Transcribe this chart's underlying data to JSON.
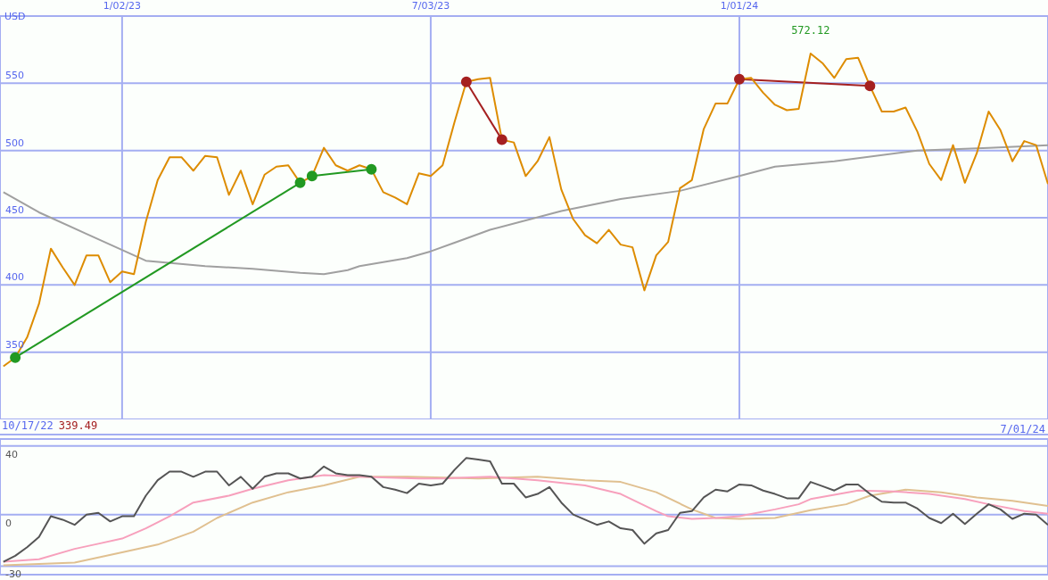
{
  "chart_data": [
    {
      "type": "line",
      "ylabel": "USD",
      "xlim": [
        "2022-10-22",
        "2024-07-01"
      ],
      "xticks": [
        {
          "value": "2023-01-02",
          "label": "1/02/23"
        },
        {
          "value": "2023-07-03",
          "label": "7/03/23"
        },
        {
          "value": "2024-01-01",
          "label": "1/01/24"
        }
      ],
      "ylim": [
        300,
        600
      ],
      "yticks": [
        350,
        400,
        450,
        500,
        550
      ],
      "grid": true,
      "tick_labels": "xy",
      "x": [
        "2022-10-24",
        "2022-10-31",
        "2022-11-07",
        "2022-11-14",
        "2022-11-21",
        "2022-11-28",
        "2022-12-05",
        "2022-12-12",
        "2022-12-19",
        "2022-12-26",
        "2023-01-02",
        "2023-01-09",
        "2023-01-16",
        "2023-01-23",
        "2023-01-30",
        "2023-02-06",
        "2023-02-13",
        "2023-02-20",
        "2023-02-27",
        "2023-03-06",
        "2023-03-13",
        "2023-03-20",
        "2023-03-27",
        "2023-04-03",
        "2023-04-10",
        "2023-04-17",
        "2023-04-24",
        "2023-05-01",
        "2023-05-08",
        "2023-05-15",
        "2023-05-22",
        "2023-05-29",
        "2023-06-05",
        "2023-06-12",
        "2023-06-19",
        "2023-06-26",
        "2023-07-03",
        "2023-07-10",
        "2023-07-17",
        "2023-07-24",
        "2023-07-31",
        "2023-08-07",
        "2023-08-14",
        "2023-08-21",
        "2023-08-28",
        "2023-09-04",
        "2023-09-11",
        "2023-09-18",
        "2023-09-25",
        "2023-10-02",
        "2023-10-09",
        "2023-10-16",
        "2023-10-23",
        "2023-10-30",
        "2023-11-06",
        "2023-11-13",
        "2023-11-20",
        "2023-11-27",
        "2023-12-04",
        "2023-12-11",
        "2023-12-18",
        "2023-12-25",
        "2024-01-01",
        "2024-01-08",
        "2024-01-15",
        "2024-01-22",
        "2024-01-29",
        "2024-02-05",
        "2024-02-12",
        "2024-02-19",
        "2024-02-26",
        "2024-03-04",
        "2024-03-11",
        "2024-03-18",
        "2024-03-25",
        "2024-04-01",
        "2024-04-08",
        "2024-04-15",
        "2024-04-22",
        "2024-04-29",
        "2024-05-06",
        "2024-05-13",
        "2024-05-20",
        "2024-05-27",
        "2024-06-03",
        "2024-06-10",
        "2024-06-17",
        "2024-06-24",
        "2024-07-01"
      ],
      "series": [
        {
          "color": "#a0a0a0",
          "x": [
            "2022-10-24",
            "2022-11-14",
            "2022-12-12",
            "2023-01-16",
            "2023-02-20",
            "2023-03-20",
            "2023-04-17",
            "2023-05-01",
            "2023-05-15",
            "2023-05-22",
            "2023-06-19",
            "2023-07-03",
            "2023-08-07",
            "2023-09-18",
            "2023-10-23",
            "2023-11-27",
            "2024-01-01",
            "2024-01-22",
            "2024-02-26",
            "2024-04-15",
            "2024-05-27",
            "2024-07-01"
          ],
          "values": [
            469,
            454,
            438,
            418,
            414,
            412,
            409,
            408,
            411,
            414,
            420,
            425,
            441,
            455,
            464,
            470,
            481,
            488,
            492,
            500,
            502,
            504
          ]
        },
        {
          "color": "#229922",
          "marker": "circle",
          "x": [
            "2022-10-31",
            "2023-04-17"
          ],
          "values": [
            346,
            476
          ]
        },
        {
          "color": "#229922",
          "marker": "circle",
          "x": [
            "2023-04-24",
            "2023-05-29"
          ],
          "values": [
            481,
            486
          ]
        },
        {
          "color": "#a52020",
          "marker": "circle",
          "x": [
            "2023-07-24",
            "2023-08-14"
          ],
          "values": [
            551,
            508
          ]
        },
        {
          "color": "#a52020",
          "marker": "circle",
          "x": [
            "2024-01-01",
            "2024-03-18"
          ],
          "values": [
            553,
            548
          ]
        },
        {
          "color": "#dd8c00",
          "values": [
            339.49,
            346,
            361,
            386,
            427,
            413,
            400,
            422,
            422,
            402,
            410,
            408,
            447,
            478,
            495,
            495,
            485,
            496,
            495,
            467,
            485,
            460,
            482,
            488,
            489,
            476,
            481,
            502,
            489,
            485,
            489,
            486,
            469,
            465,
            460,
            483,
            481,
            489,
            521,
            551,
            553,
            554,
            508,
            506,
            481,
            492,
            510,
            471,
            449,
            437,
            431,
            441,
            430,
            428,
            396,
            422,
            432,
            472,
            478,
            516,
            535,
            535,
            553,
            554,
            543,
            534,
            530,
            531,
            572.12,
            565,
            554,
            568,
            569,
            548,
            529,
            529,
            532,
            514,
            490,
            478,
            504,
            476,
            498,
            529,
            515,
            492,
            507,
            504,
            475
          ]
        }
      ],
      "annotations": [
        "10/17/22",
        "339.49",
        "7/01/24",
        {
          "text": "572.12",
          "x": "2024-02-12",
          "y": 572.12
        }
      ]
    },
    {
      "type": "line",
      "xlim": [
        "2022-10-22",
        "2024-07-01"
      ],
      "xticks": [
        {
          "value": "2023-01-02",
          "label": null
        },
        {
          "value": "2023-07-03",
          "label": null
        },
        {
          "value": "2024-01-01",
          "label": null
        }
      ],
      "ylim": [
        -35,
        44
      ],
      "yticks": [
        -30,
        0,
        40
      ],
      "grid": true,
      "tick_labels": "y",
      "x": [
        "2022-10-24",
        "2022-10-31",
        "2022-11-07",
        "2022-11-14",
        "2022-11-21",
        "2022-11-28",
        "2022-12-05",
        "2022-12-12",
        "2022-12-19",
        "2022-12-26",
        "2023-01-02",
        "2023-01-09",
        "2023-01-16",
        "2023-01-23",
        "2023-01-30",
        "2023-02-06",
        "2023-02-13",
        "2023-02-20",
        "2023-02-27",
        "2023-03-06",
        "2023-03-13",
        "2023-03-20",
        "2023-03-27",
        "2023-04-03",
        "2023-04-10",
        "2023-04-17",
        "2023-04-24",
        "2023-05-01",
        "2023-05-08",
        "2023-05-15",
        "2023-05-22",
        "2023-05-29",
        "2023-06-05",
        "2023-06-12",
        "2023-06-19",
        "2023-06-26",
        "2023-07-03",
        "2023-07-10",
        "2023-07-17",
        "2023-07-24",
        "2023-07-31",
        "2023-08-07",
        "2023-08-14",
        "2023-08-21",
        "2023-08-28",
        "2023-09-04",
        "2023-09-11",
        "2023-09-18",
        "2023-09-25",
        "2023-10-02",
        "2023-10-09",
        "2023-10-16",
        "2023-10-23",
        "2023-10-30",
        "2023-11-06",
        "2023-11-13",
        "2023-11-20",
        "2023-11-27",
        "2023-12-04",
        "2023-12-11",
        "2023-12-18",
        "2023-12-25",
        "2024-01-01",
        "2024-01-08",
        "2024-01-15",
        "2024-01-22",
        "2024-01-29",
        "2024-02-05",
        "2024-02-12",
        "2024-02-19",
        "2024-02-26",
        "2024-03-04",
        "2024-03-11",
        "2024-03-18",
        "2024-03-25",
        "2024-04-01",
        "2024-04-08",
        "2024-04-15",
        "2024-04-22",
        "2024-04-29",
        "2024-05-06",
        "2024-05-13",
        "2024-05-20",
        "2024-05-27",
        "2024-06-03",
        "2024-06-10",
        "2024-06-17",
        "2024-06-24",
        "2024-07-01"
      ],
      "series": [
        {
          "color": "#e0c090",
          "x": [
            "2022-10-24",
            "2022-12-05",
            "2023-01-02",
            "2023-01-23",
            "2023-02-13",
            "2023-02-27",
            "2023-03-20",
            "2023-04-10",
            "2023-05-01",
            "2023-05-22",
            "2023-06-19",
            "2023-07-31",
            "2023-09-04",
            "2023-10-02",
            "2023-10-23",
            "2023-11-13",
            "2023-12-04",
            "2023-12-18",
            "2024-01-01",
            "2024-01-22",
            "2024-02-12",
            "2024-03-04",
            "2024-03-18",
            "2024-04-08",
            "2024-04-29",
            "2024-05-20",
            "2024-06-10",
            "2024-07-01"
          ],
          "values": [
            -29.5,
            -28,
            -22,
            -17.5,
            -10,
            -2,
            7,
            13,
            17,
            22,
            22,
            21,
            22,
            20,
            19,
            13,
            3,
            -2,
            -2.5,
            -2,
            2.5,
            6,
            11,
            14.5,
            13,
            10,
            8,
            5
          ]
        },
        {
          "color": "#f7a0bc",
          "x": [
            "2022-10-24",
            "2022-11-14",
            "2022-12-05",
            "2022-12-19",
            "2023-01-02",
            "2023-01-16",
            "2023-01-30",
            "2023-02-13",
            "2023-03-06",
            "2023-03-20",
            "2023-04-10",
            "2023-05-01",
            "2023-05-22",
            "2023-06-26",
            "2023-07-10",
            "2023-08-07",
            "2023-09-04",
            "2023-10-02",
            "2023-10-23",
            "2023-11-13",
            "2023-11-20",
            "2023-12-04",
            "2023-12-18",
            "2024-01-01",
            "2024-01-22",
            "2024-02-05",
            "2024-02-12",
            "2024-03-11",
            "2024-04-01",
            "2024-04-22",
            "2024-05-13",
            "2024-05-27",
            "2024-06-17",
            "2024-07-01"
          ],
          "values": [
            -27.5,
            -26,
            -20,
            -17,
            -14,
            -8,
            -1,
            7,
            11,
            15,
            20,
            23,
            22,
            21,
            21,
            22,
            20,
            17,
            12,
            2,
            -1,
            -2.5,
            -2,
            -1,
            3,
            6,
            9,
            14,
            13.5,
            12,
            9,
            6,
            2,
            0.5
          ]
        },
        {
          "color": "#555555",
          "values": [
            -27.5,
            -24,
            -19,
            -13,
            -1,
            -3,
            -6,
            0,
            1,
            -4,
            -1,
            -1,
            11,
            20,
            25,
            25,
            22,
            25,
            25,
            17,
            22,
            15,
            22,
            24,
            24,
            21,
            22,
            28,
            24,
            23,
            23,
            22,
            16,
            14.5,
            12.5,
            18,
            17,
            18,
            26,
            33,
            32,
            31,
            18,
            18,
            10,
            12,
            16,
            7,
            0,
            -3,
            -6,
            -4,
            -8,
            -9,
            -17,
            -11,
            -9,
            1,
            2,
            10,
            14.5,
            13.5,
            17.5,
            17,
            14,
            12,
            9.5,
            9.5,
            19,
            16.5,
            14,
            17.5,
            17.5,
            12,
            7.5,
            7,
            7,
            3.5,
            -2,
            -5,
            0.5,
            -5.5,
            0.5,
            6,
            3,
            -2.5,
            0.5,
            0,
            -6
          ]
        }
      ]
    }
  ]
}
